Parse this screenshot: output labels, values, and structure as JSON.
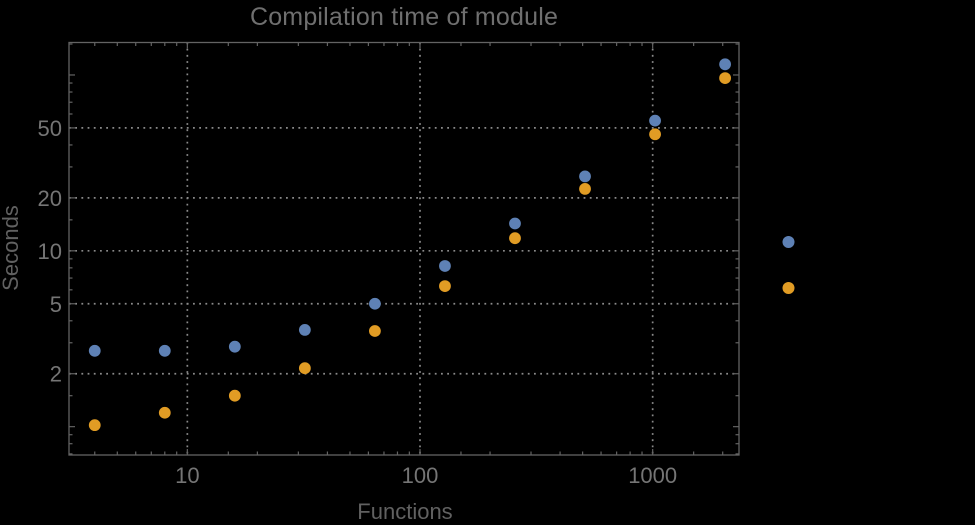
{
  "chart_data": {
    "type": "scatter",
    "title": "Compilation time of module",
    "x_axis": {
      "label": "Functions",
      "scale": "log",
      "range": [
        3.1,
        2350
      ],
      "labeled_ticks": [
        10,
        100,
        1000
      ],
      "tick_labels": [
        "10",
        "100",
        "1000"
      ],
      "minor_ticks": [
        4,
        5,
        6,
        7,
        8,
        9,
        15,
        20,
        30,
        40,
        50,
        60,
        70,
        80,
        90,
        150,
        200,
        300,
        400,
        500,
        600,
        700,
        800,
        900,
        1500,
        2000
      ],
      "gridlines": [
        10,
        100,
        1000
      ]
    },
    "y_axis": {
      "label": "Seconds",
      "scale": "log",
      "range": [
        0.69,
        153
      ],
      "labeled_ticks": [
        2,
        5,
        10,
        20,
        50
      ],
      "tick_labels": [
        "2",
        "5",
        "10",
        "20",
        "50"
      ],
      "unlabeled_major_ticks": [
        1,
        100
      ],
      "minor_ticks": [
        0.7,
        0.8,
        0.9,
        1.5,
        3,
        4,
        6,
        7,
        8,
        9,
        15,
        30,
        40,
        60,
        70,
        80,
        90,
        150
      ],
      "gridlines": [
        2,
        5,
        10,
        20,
        50
      ]
    },
    "x": [
      4,
      8,
      16,
      32,
      64,
      128,
      256,
      512,
      1024,
      2048
    ],
    "series": [
      {
        "name": "series-1",
        "color": "#5E81B5",
        "values": [
          2.7,
          2.7,
          2.85,
          3.55,
          5.0,
          8.2,
          14.3,
          26.5,
          55,
          115
        ]
      },
      {
        "name": "series-2",
        "color": "#E19C24",
        "values": [
          1.02,
          1.2,
          1.5,
          2.15,
          3.5,
          6.3,
          11.8,
          22.5,
          46,
          96
        ]
      }
    ],
    "legend": {
      "position": "outside-right",
      "entries": [
        {
          "series": "series-1",
          "label": ""
        },
        {
          "series": "series-2",
          "label": ""
        }
      ]
    },
    "grid": "dotted",
    "marker_radius": 6,
    "colors": {
      "background": "#000000",
      "frame": "#636363",
      "grid": "#8A8A8A",
      "tick_label": "#757575",
      "title": "#6F6F6F",
      "axis_label": "#616161"
    }
  }
}
